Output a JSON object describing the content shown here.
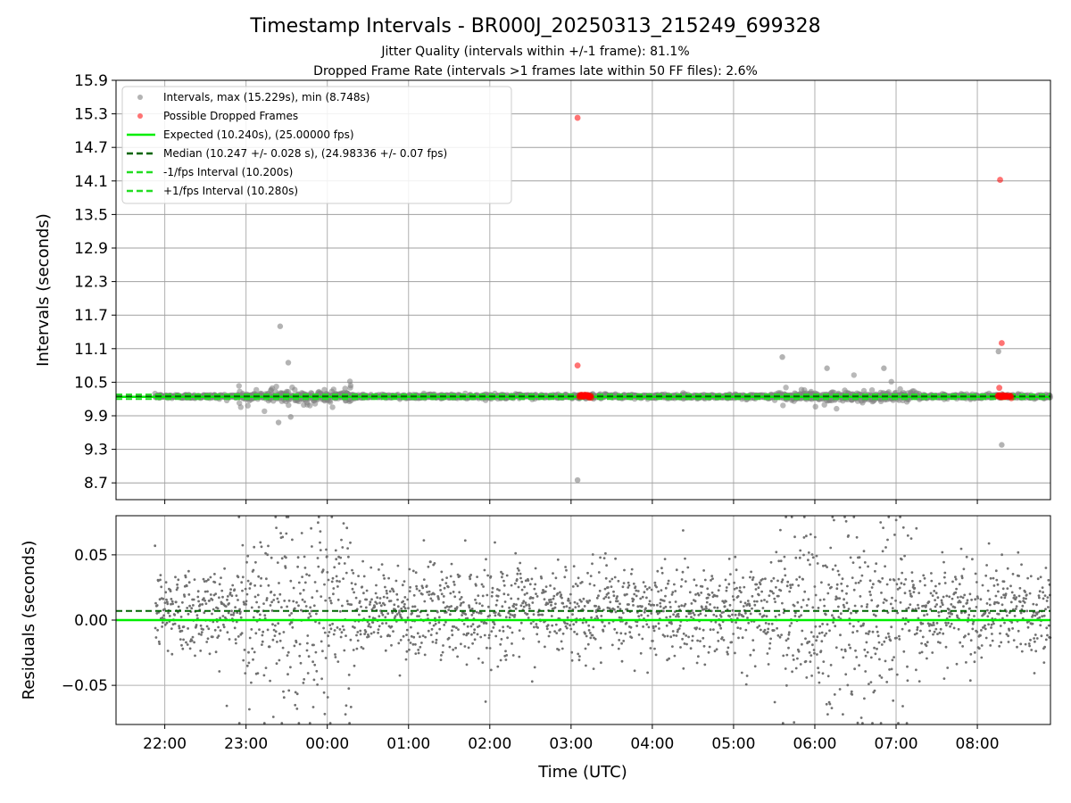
{
  "chart_data": {
    "title": "Timestamp Intervals - BR000J_20250313_215249_699328",
    "subtitle_lines": [
      "Jitter Quality (intervals within +/-1 frame): 81.1%",
      "Dropped Frame Rate (intervals >1 frames late within 50 FF files): 2.6%"
    ],
    "xlabel": "Time (UTC)",
    "x_tick_labels": [
      "22:00",
      "23:00",
      "00:00",
      "01:00",
      "02:00",
      "03:00",
      "04:00",
      "05:00",
      "06:00",
      "07:00",
      "08:00"
    ],
    "top_panel": {
      "type": "scatter",
      "ylabel": "Intervals (seconds)",
      "ylim": [
        8.4,
        15.9
      ],
      "y_ticks": [
        "8.7",
        "9.3",
        "9.9",
        "10.5",
        "11.1",
        "11.7",
        "12.3",
        "12.9",
        "13.5",
        "14.1",
        "14.7",
        "15.3",
        "15.9"
      ],
      "grid": true,
      "legend_position": "upper-left",
      "legend": [
        "Intervals, max (15.229s), min (8.748s)",
        "Possible Dropped Frames",
        "Expected (10.240s), (25.00000 fps)",
        "Median (10.247 +/- 0.028 s), (24.98336 +/- 0.07 fps)",
        "-1/fps Interval (10.200s)",
        "+1/fps Interval (10.280s)"
      ],
      "reference_lines": {
        "expected": 10.24,
        "median": 10.247,
        "minus_one_fps": 10.2,
        "plus_one_fps": 10.28
      },
      "notable_points_hours": {
        "gray": [
          [
            23.42,
            11.5
          ],
          [
            23.52,
            10.85
          ],
          [
            23.4,
            9.78
          ],
          [
            23.55,
            9.88
          ],
          [
            3.08,
            8.75
          ],
          [
            8.3,
            9.38
          ],
          [
            8.26,
            11.05
          ],
          [
            5.6,
            10.95
          ],
          [
            6.85,
            10.75
          ],
          [
            6.15,
            10.75
          ]
        ],
        "red": [
          [
            3.08,
            15.229
          ],
          [
            3.08,
            10.8
          ],
          [
            8.28,
            14.12
          ],
          [
            8.3,
            11.2
          ],
          [
            8.27,
            10.4
          ]
        ]
      },
      "colors": {
        "intervals": "#808080",
        "dropped": "#ff0000",
        "expected": "#00ee00",
        "median": "#006400",
        "fps_bounds": "#22dd22"
      }
    },
    "bottom_panel": {
      "type": "scatter",
      "ylabel": "Residuals (seconds)",
      "ylim": [
        -0.08,
        0.08
      ],
      "y_ticks": [
        "−0.05",
        "0.00",
        "0.05"
      ],
      "median_offset": 0.007,
      "grid": true
    },
    "x_range_hours": [
      21.4,
      8.9
    ],
    "data_start_hour": 21.88,
    "data_end_hour": 8.9,
    "high_jitter_windows_hours": [
      [
        22.9,
        0.3
      ],
      [
        5.5,
        7.3
      ]
    ]
  }
}
